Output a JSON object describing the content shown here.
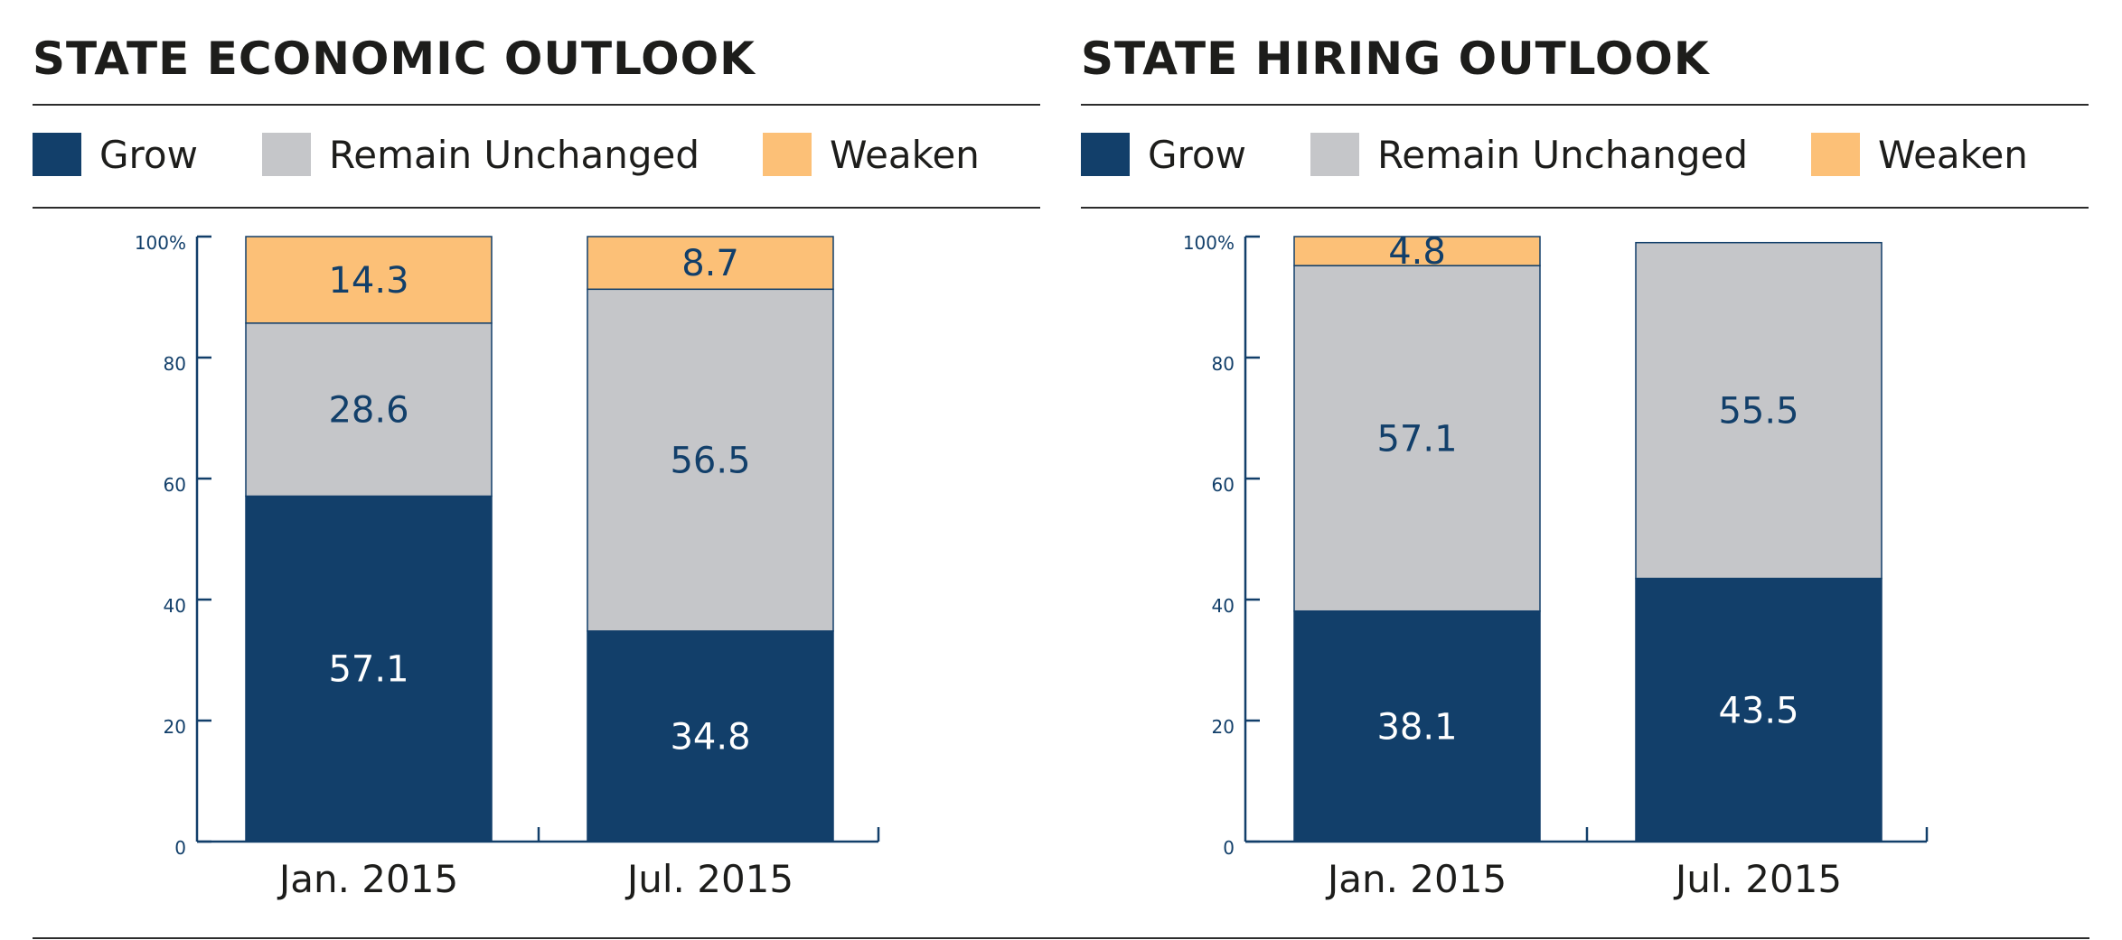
{
  "colors": {
    "grow": "#123f6a",
    "unchanged": "#c5c6c9",
    "weaken": "#fcc077",
    "axis": "#123f6a"
  },
  "legend": {
    "grow": "Grow",
    "unchanged": "Remain Unchanged",
    "weaken": "Weaken"
  },
  "chart_data": [
    {
      "type": "bar",
      "stacked": true,
      "title": "STATE ECONOMIC OUTLOOK",
      "categories": [
        "Jan. 2015",
        "Jul. 2015"
      ],
      "series": [
        {
          "name": "Grow",
          "values": [
            57.1,
            34.8
          ]
        },
        {
          "name": "Remain Unchanged",
          "values": [
            28.6,
            56.5
          ]
        },
        {
          "name": "Weaken",
          "values": [
            14.3,
            8.7
          ]
        }
      ],
      "ylim": [
        0,
        100
      ],
      "yticks": [
        "0",
        "20",
        "40",
        "60",
        "80",
        "100%"
      ],
      "legend_position": "top",
      "grid": false
    },
    {
      "type": "bar",
      "stacked": true,
      "title": "STATE HIRING OUTLOOK",
      "categories": [
        "Jan. 2015",
        "Jul. 2015"
      ],
      "series": [
        {
          "name": "Grow",
          "values": [
            38.1,
            43.5
          ]
        },
        {
          "name": "Remain Unchanged",
          "values": [
            57.1,
            55.5
          ]
        },
        {
          "name": "Weaken",
          "values": [
            4.8,
            null
          ]
        }
      ],
      "ylim": [
        0,
        100
      ],
      "yticks": [
        "0",
        "20",
        "40",
        "60",
        "80",
        "100%"
      ],
      "legend_position": "top",
      "grid": false
    }
  ]
}
